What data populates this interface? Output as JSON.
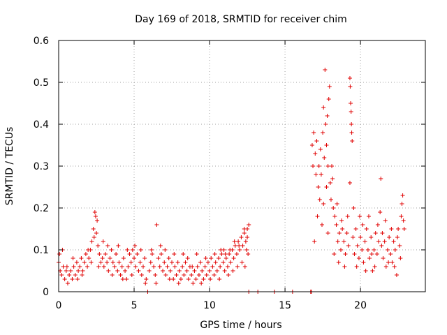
{
  "chart_data": {
    "type": "scatter",
    "title": "Day 169 of 2018, SRMTID for receiver chim",
    "xlabel": "GPS time / hours",
    "ylabel": "SRMTID / TECUs",
    "xlim": [
      0,
      24.3
    ],
    "ylim": [
      0,
      0.6
    ],
    "xticks": [
      0,
      5,
      10,
      15,
      20
    ],
    "yticks": [
      0,
      0.1,
      0.2,
      0.3,
      0.4,
      0.5,
      0.6
    ],
    "xtick_labels": [
      "0",
      "5",
      "10",
      "15",
      "20"
    ],
    "ytick_labels": [
      "0",
      "0.1",
      "0.2",
      "0.3",
      "0.4",
      "0.5",
      "0.6"
    ],
    "grid": true,
    "marker": "+",
    "color": "#e00000",
    "series": [
      {
        "name": "SRMTID",
        "points": [
          [
            0.0,
            0.07
          ],
          [
            0.1,
            0.05
          ],
          [
            0.2,
            0.04
          ],
          [
            0.3,
            0.06
          ],
          [
            0.4,
            0.03
          ],
          [
            0.5,
            0.05
          ],
          [
            0.6,
            0.02
          ],
          [
            0.7,
            0.04
          ],
          [
            0.8,
            0.05
          ],
          [
            0.9,
            0.03
          ],
          [
            1.0,
            0.06
          ],
          [
            1.1,
            0.04
          ],
          [
            1.2,
            0.07
          ],
          [
            1.3,
            0.05
          ],
          [
            1.4,
            0.06
          ],
          [
            1.5,
            0.08
          ],
          [
            1.6,
            0.05
          ],
          [
            1.7,
            0.07
          ],
          [
            1.8,
            0.09
          ],
          [
            1.9,
            0.06
          ],
          [
            2.0,
            0.08
          ],
          [
            2.1,
            0.1
          ],
          [
            2.2,
            0.12
          ],
          [
            2.3,
            0.15
          ],
          [
            2.4,
            0.19
          ],
          [
            2.45,
            0.18
          ],
          [
            2.5,
            0.14
          ],
          [
            2.6,
            0.11
          ],
          [
            2.7,
            0.09
          ],
          [
            2.8,
            0.07
          ],
          [
            2.9,
            0.08
          ],
          [
            3.0,
            0.06
          ],
          [
            3.1,
            0.09
          ],
          [
            3.2,
            0.07
          ],
          [
            3.3,
            0.05
          ],
          [
            3.4,
            0.08
          ],
          [
            3.5,
            0.1
          ],
          [
            3.6,
            0.07
          ],
          [
            3.7,
            0.06
          ],
          [
            3.8,
            0.09
          ],
          [
            3.9,
            0.05
          ],
          [
            4.0,
            0.07
          ],
          [
            4.1,
            0.04
          ],
          [
            4.2,
            0.06
          ],
          [
            4.3,
            0.08
          ],
          [
            4.4,
            0.05
          ],
          [
            4.5,
            0.03
          ],
          [
            4.6,
            0.06
          ],
          [
            4.7,
            0.09
          ],
          [
            4.8,
            0.07
          ],
          [
            4.9,
            0.1
          ],
          [
            5.0,
            0.08
          ],
          [
            5.1,
            0.06
          ],
          [
            5.2,
            0.09
          ],
          [
            5.3,
            0.05
          ],
          [
            5.4,
            0.07
          ],
          [
            5.5,
            0.04
          ],
          [
            5.6,
            0.06
          ],
          [
            5.7,
            0.08
          ],
          [
            5.8,
            0.03
          ],
          [
            5.9,
            0.0
          ],
          [
            6.0,
            0.05
          ],
          [
            6.1,
            0.07
          ],
          [
            6.2,
            0.09
          ],
          [
            6.3,
            0.06
          ],
          [
            6.4,
            0.04
          ],
          [
            6.5,
            0.16
          ],
          [
            6.6,
            0.08
          ],
          [
            6.7,
            0.06
          ],
          [
            6.8,
            0.09
          ],
          [
            6.9,
            0.05
          ],
          [
            7.0,
            0.07
          ],
          [
            7.1,
            0.04
          ],
          [
            7.2,
            0.06
          ],
          [
            7.3,
            0.08
          ],
          [
            7.4,
            0.05
          ],
          [
            7.5,
            0.07
          ],
          [
            7.6,
            0.03
          ],
          [
            7.7,
            0.06
          ],
          [
            7.8,
            0.04
          ],
          [
            7.9,
            0.07
          ],
          [
            8.0,
            0.05
          ],
          [
            8.1,
            0.03
          ],
          [
            8.2,
            0.06
          ],
          [
            8.3,
            0.04
          ],
          [
            8.4,
            0.07
          ],
          [
            8.5,
            0.05
          ],
          [
            8.6,
            0.03
          ],
          [
            8.7,
            0.06
          ],
          [
            8.8,
            0.04
          ],
          [
            8.9,
            0.02
          ],
          [
            9.0,
            0.05
          ],
          [
            9.1,
            0.03
          ],
          [
            9.2,
            0.06
          ],
          [
            9.3,
            0.04
          ],
          [
            9.4,
            0.07
          ],
          [
            9.5,
            0.05
          ],
          [
            9.6,
            0.03
          ],
          [
            9.7,
            0.06
          ],
          [
            9.8,
            0.04
          ],
          [
            9.9,
            0.07
          ],
          [
            10.0,
            0.05
          ],
          [
            10.1,
            0.08
          ],
          [
            10.2,
            0.06
          ],
          [
            10.3,
            0.04
          ],
          [
            10.4,
            0.07
          ],
          [
            10.5,
            0.05
          ],
          [
            10.6,
            0.08
          ],
          [
            10.7,
            0.06
          ],
          [
            10.8,
            0.09
          ],
          [
            10.9,
            0.07
          ],
          [
            11.0,
            0.05
          ],
          [
            11.1,
            0.08
          ],
          [
            11.2,
            0.06
          ],
          [
            11.3,
            0.09
          ],
          [
            11.4,
            0.07
          ],
          [
            11.5,
            0.1
          ],
          [
            11.6,
            0.08
          ],
          [
            11.7,
            0.11
          ],
          [
            11.8,
            0.09
          ],
          [
            11.9,
            0.12
          ],
          [
            12.0,
            0.1
          ],
          [
            12.1,
            0.13
          ],
          [
            12.2,
            0.11
          ],
          [
            12.3,
            0.14
          ],
          [
            12.4,
            0.12
          ],
          [
            12.5,
            0.15
          ],
          [
            12.6,
            0.16
          ],
          [
            12.55,
            0.09
          ],
          [
            12.45,
            0.1
          ],
          [
            12.6,
            0.0
          ],
          [
            13.2,
            0.0
          ],
          [
            14.3,
            0.0
          ],
          [
            15.5,
            0.0
          ],
          [
            16.7,
            0.0
          ],
          [
            16.75,
            0.0
          ],
          [
            16.8,
            0.35
          ],
          [
            16.85,
            0.3
          ],
          [
            16.9,
            0.38
          ],
          [
            17.0,
            0.33
          ],
          [
            17.05,
            0.28
          ],
          [
            17.1,
            0.36
          ],
          [
            17.2,
            0.25
          ],
          [
            17.25,
            0.3
          ],
          [
            17.3,
            0.22
          ],
          [
            17.35,
            0.34
          ],
          [
            17.4,
            0.28
          ],
          [
            17.5,
            0.38
          ],
          [
            17.55,
            0.44
          ],
          [
            17.6,
            0.32
          ],
          [
            17.65,
            0.53
          ],
          [
            17.7,
            0.4
          ],
          [
            17.75,
            0.35
          ],
          [
            17.8,
            0.42
          ],
          [
            17.85,
            0.3
          ],
          [
            17.9,
            0.46
          ],
          [
            17.95,
            0.49
          ],
          [
            18.0,
            0.26
          ],
          [
            18.05,
            0.22
          ],
          [
            18.1,
            0.3
          ],
          [
            18.2,
            0.2
          ],
          [
            18.3,
            0.18
          ],
          [
            18.4,
            0.16
          ],
          [
            18.5,
            0.12
          ],
          [
            18.6,
            0.14
          ],
          [
            18.7,
            0.1
          ],
          [
            18.8,
            0.15
          ],
          [
            18.9,
            0.12
          ],
          [
            19.0,
            0.09
          ],
          [
            19.1,
            0.14
          ],
          [
            19.2,
            0.11
          ],
          [
            19.3,
            0.51
          ],
          [
            19.32,
            0.49
          ],
          [
            19.35,
            0.45
          ],
          [
            19.38,
            0.43
          ],
          [
            19.4,
            0.4
          ],
          [
            19.42,
            0.38
          ],
          [
            19.45,
            0.36
          ],
          [
            19.3,
            0.26
          ],
          [
            19.5,
            0.13
          ],
          [
            19.6,
            0.09
          ],
          [
            19.7,
            0.15
          ],
          [
            19.8,
            0.11
          ],
          [
            19.9,
            0.08
          ],
          [
            20.0,
            0.13
          ],
          [
            20.1,
            0.1
          ],
          [
            20.2,
            0.07
          ],
          [
            20.3,
            0.12
          ],
          [
            20.4,
            0.15
          ],
          [
            20.5,
            0.1
          ],
          [
            20.6,
            0.08
          ],
          [
            20.7,
            0.13
          ],
          [
            20.8,
            0.05
          ],
          [
            20.9,
            0.1
          ],
          [
            21.0,
            0.14
          ],
          [
            21.1,
            0.09
          ],
          [
            21.2,
            0.12
          ],
          [
            21.3,
            0.19
          ],
          [
            21.35,
            0.27
          ],
          [
            21.4,
            0.11
          ],
          [
            21.5,
            0.08
          ],
          [
            21.6,
            0.12
          ],
          [
            21.7,
            0.06
          ],
          [
            21.8,
            0.1
          ],
          [
            21.9,
            0.13
          ],
          [
            22.0,
            0.09
          ],
          [
            22.1,
            0.07
          ],
          [
            22.2,
            0.12
          ],
          [
            22.3,
            0.1
          ],
          [
            22.4,
            0.04
          ],
          [
            22.5,
            0.15
          ],
          [
            22.6,
            0.11
          ],
          [
            22.7,
            0.18
          ],
          [
            22.75,
            0.21
          ],
          [
            22.8,
            0.23
          ],
          [
            22.85,
            0.17
          ],
          [
            16.95,
            0.12
          ],
          [
            17.15,
            0.18
          ],
          [
            17.45,
            0.16
          ],
          [
            17.55,
            0.21
          ],
          [
            17.75,
            0.25
          ],
          [
            17.85,
            0.14
          ],
          [
            18.15,
            0.27
          ],
          [
            18.25,
            0.09
          ],
          [
            18.45,
            0.21
          ],
          [
            18.55,
            0.07
          ],
          [
            18.75,
            0.17
          ],
          [
            18.95,
            0.06
          ],
          [
            19.15,
            0.18
          ],
          [
            19.55,
            0.2
          ],
          [
            19.75,
            0.06
          ],
          [
            19.95,
            0.18
          ],
          [
            20.15,
            0.16
          ],
          [
            20.35,
            0.05
          ],
          [
            20.55,
            0.18
          ],
          [
            20.75,
            0.09
          ],
          [
            20.95,
            0.06
          ],
          [
            21.15,
            0.16
          ],
          [
            21.45,
            0.14
          ],
          [
            21.65,
            0.17
          ],
          [
            21.85,
            0.07
          ],
          [
            22.05,
            0.15
          ],
          [
            22.25,
            0.06
          ],
          [
            22.45,
            0.13
          ],
          [
            22.65,
            0.08
          ],
          [
            22.9,
            0.15
          ],
          [
            0.05,
            0.09
          ],
          [
            0.25,
            0.1
          ],
          [
            0.55,
            0.06
          ],
          [
            0.95,
            0.08
          ],
          [
            1.25,
            0.03
          ],
          [
            1.55,
            0.04
          ],
          [
            1.95,
            0.1
          ],
          [
            2.15,
            0.07
          ],
          [
            2.35,
            0.13
          ],
          [
            2.55,
            0.17
          ],
          [
            2.65,
            0.06
          ],
          [
            2.95,
            0.12
          ],
          [
            3.25,
            0.11
          ],
          [
            3.55,
            0.04
          ],
          [
            3.95,
            0.11
          ],
          [
            4.25,
            0.03
          ],
          [
            4.55,
            0.1
          ],
          [
            4.85,
            0.04
          ],
          [
            5.05,
            0.11
          ],
          [
            5.45,
            0.1
          ],
          [
            5.75,
            0.02
          ],
          [
            6.15,
            0.1
          ],
          [
            6.45,
            0.02
          ],
          [
            6.75,
            0.11
          ],
          [
            7.05,
            0.1
          ],
          [
            7.35,
            0.03
          ],
          [
            7.65,
            0.09
          ],
          [
            7.95,
            0.02
          ],
          [
            8.25,
            0.09
          ],
          [
            8.55,
            0.08
          ],
          [
            8.85,
            0.06
          ],
          [
            9.15,
            0.09
          ],
          [
            9.45,
            0.02
          ],
          [
            9.75,
            0.08
          ],
          [
            10.05,
            0.03
          ],
          [
            10.35,
            0.09
          ],
          [
            10.65,
            0.03
          ],
          [
            10.95,
            0.1
          ],
          [
            11.25,
            0.04
          ],
          [
            11.55,
            0.05
          ],
          [
            11.85,
            0.06
          ],
          [
            12.15,
            0.07
          ],
          [
            12.35,
            0.06
          ],
          [
            12.5,
            0.13
          ],
          [
            12.3,
            0.15
          ],
          [
            11.95,
            0.11
          ],
          [
            11.65,
            0.12
          ],
          [
            11.35,
            0.1
          ],
          [
            11.05,
            0.09
          ],
          [
            10.75,
            0.1
          ]
        ]
      }
    ]
  }
}
